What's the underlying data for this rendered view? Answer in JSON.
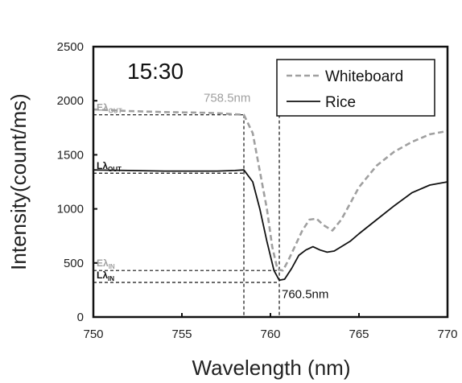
{
  "chart_data": {
    "type": "line",
    "inset_label": "15:30",
    "xlabel": "Wavelength (nm)",
    "ylabel": "Intensity(count/ms)",
    "xlim": [
      750,
      770
    ],
    "ylim": [
      0,
      2500
    ],
    "x_ticks": [
      750,
      755,
      760,
      765,
      770
    ],
    "y_ticks": [
      0,
      500,
      1000,
      1500,
      2000,
      2500
    ],
    "grid": false,
    "legend_position": "top-right",
    "series": [
      {
        "name": "Whiteboard",
        "style": "dashed",
        "color": "#a0a0a0",
        "x": [
          750,
          752,
          754,
          756,
          757,
          758,
          758.5,
          759,
          759.4,
          759.8,
          760.1,
          760.4,
          760.7,
          761,
          761.4,
          761.8,
          762.2,
          762.6,
          763,
          763.5,
          764,
          764.5,
          765,
          766,
          767,
          768,
          769,
          770
        ],
        "y": [
          1920,
          1905,
          1895,
          1890,
          1885,
          1875,
          1870,
          1700,
          1350,
          1000,
          650,
          440,
          430,
          520,
          660,
          800,
          900,
          910,
          850,
          800,
          900,
          1050,
          1200,
          1400,
          1530,
          1620,
          1690,
          1720
        ]
      },
      {
        "name": "Rice",
        "style": "solid",
        "color": "#111111",
        "x": [
          750,
          752,
          754,
          756,
          757,
          758,
          758.5,
          759,
          759.4,
          759.8,
          760.2,
          760.5,
          760.8,
          761.2,
          761.6,
          762,
          762.4,
          762.8,
          763.2,
          763.6,
          764,
          764.5,
          765,
          766,
          767,
          768,
          769,
          770
        ],
        "y": [
          1360,
          1355,
          1350,
          1350,
          1350,
          1355,
          1360,
          1250,
          1000,
          700,
          430,
          340,
          350,
          450,
          570,
          620,
          650,
          620,
          600,
          610,
          650,
          700,
          770,
          900,
          1030,
          1150,
          1220,
          1250
        ]
      }
    ],
    "annotations": [
      {
        "text": "758.5nm",
        "x": 758.5,
        "y": 1870,
        "color": "#a0a0a0"
      },
      {
        "text": "760.5nm",
        "x": 760.5,
        "y": 340,
        "color": "#111111"
      }
    ],
    "reference_levels": [
      {
        "label": "Eλ",
        "sub": "OUT",
        "y": 1870,
        "x_end": 758.5,
        "color": "#a0a0a0"
      },
      {
        "label": "Lλ",
        "sub": "OUT",
        "y": 1330,
        "x_end": 758.5,
        "color": "#111111"
      },
      {
        "label": "Eλ",
        "sub": "IN",
        "y": 430,
        "x_end": 760.5,
        "color": "#a0a0a0"
      },
      {
        "label": "Lλ",
        "sub": "IN",
        "y": 320,
        "x_end": 760.5,
        "color": "#111111"
      }
    ],
    "vertical_markers": [
      758.5,
      760.5
    ]
  }
}
